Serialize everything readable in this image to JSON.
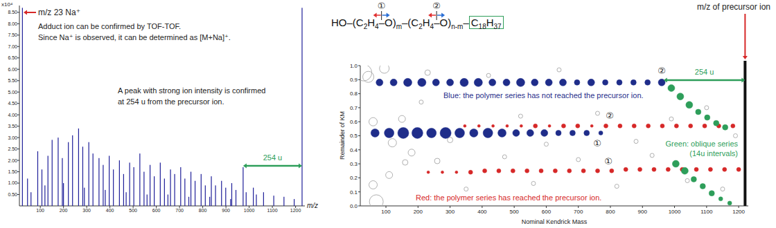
{
  "chart_data": [
    {
      "type": "bar",
      "x": [
        23,
        45,
        60,
        89,
        107,
        120,
        133,
        151,
        177,
        195,
        200,
        221,
        239,
        265,
        283,
        290,
        309,
        327,
        353,
        371,
        380,
        397,
        415,
        441,
        459,
        470,
        485,
        503,
        529,
        547,
        560,
        573,
        591,
        617,
        635,
        650,
        661,
        679,
        705,
        723,
        740,
        749,
        767,
        793,
        811,
        830,
        837,
        855,
        881,
        899,
        920,
        925,
        943,
        974,
        987,
        1018,
        1031,
        1062,
        1106,
        1150,
        1194,
        1228
      ],
      "values": [
        8.7,
        1.2,
        0.6,
        2.4,
        1.6,
        0.9,
        2.2,
        2.9,
        3.0,
        2.1,
        1.0,
        2.8,
        3.1,
        3.4,
        2.6,
        0.8,
        2.8,
        2.3,
        2.1,
        1.8,
        0.7,
        2.2,
        1.6,
        2.0,
        1.4,
        0.6,
        1.9,
        1.7,
        2.3,
        1.5,
        0.5,
        1.8,
        1.3,
        1.9,
        1.2,
        0.5,
        1.6,
        1.4,
        1.7,
        1.2,
        0.4,
        1.5,
        1.1,
        1.4,
        0.9,
        0.4,
        1.3,
        0.9,
        1.1,
        0.8,
        0.3,
        1.0,
        0.7,
        1.7,
        0.6,
        0.8,
        0.5,
        0.6,
        0.45,
        0.4,
        0.3,
        8.7
      ],
      "color": "#1f1f99",
      "xlim": [
        10,
        1240
      ],
      "ylim": [
        0,
        8.8
      ],
      "xticks": [
        100,
        200,
        300,
        400,
        500,
        600,
        700,
        800,
        900,
        1000,
        1100,
        1200
      ],
      "yticks": [
        {
          "value": 0.5,
          "label": "0.50"
        },
        {
          "value": 1,
          "label": "1.00"
        },
        {
          "value": 1.5,
          "label": "1.50"
        },
        {
          "value": 2,
          "label": "2.00"
        },
        {
          "value": 2.5,
          "label": "2.50"
        },
        {
          "value": 3,
          "label": "3.00"
        },
        {
          "value": 3.5,
          "label": "3.50"
        },
        {
          "value": 4,
          "label": "4.00"
        },
        {
          "value": 4.5,
          "label": "4.50"
        },
        {
          "value": 5,
          "label": "5.00"
        },
        {
          "value": 5.5,
          "label": "5.50"
        },
        {
          "value": 6,
          "label": "6.00"
        },
        {
          "value": 6.5,
          "label": "6.50"
        },
        {
          "value": 7,
          "label": "7.00"
        },
        {
          "value": 7.5,
          "label": "7.50"
        },
        {
          "value": 8,
          "label": "8.00"
        },
        {
          "value": 8.5,
          "label": "8.50"
        }
      ],
      "xlabel": "m/z",
      "ylabel": "x10⁴",
      "annotations": [
        {
          "text": "m/z 23 Na⁺",
          "color": "#222222"
        },
        {
          "text": "Adduct ion can be confirmed by TOF-TOF.",
          "color": "#222222"
        },
        {
          "text": "Since Na⁺ is observed, it can be determined as [M+Na]⁺.",
          "color": "#222222"
        },
        {
          "text": "A peak with strong ion intensity is confirmed",
          "color": "#222222"
        },
        {
          "text": "at 254 u from the precursor ion.",
          "color": "#222222"
        },
        {
          "text": "254 u",
          "color": "#2e9e5a",
          "x": [
            974,
            1228
          ]
        }
      ]
    },
    {
      "type": "bubble",
      "formula": [
        "HO–(C",
        "2",
        "H",
        "4",
        "–O)",
        "m",
        "–(C",
        "2",
        "H",
        "4",
        "–O)",
        "n-m",
        "–"
      ],
      "end_group": [
        "C",
        "18",
        "H",
        "37"
      ],
      "formula_marks": [
        "①",
        "②"
      ],
      "series": [
        {
          "color": "#b0b0b0",
          "marker": "open-circle",
          "x": [
            30,
            45,
            60,
            70,
            95,
            120,
            150,
            180,
            230,
            260,
            300,
            350,
            420,
            470,
            520,
            560,
            600,
            640,
            700,
            760,
            820,
            880,
            930,
            990,
            1040,
            1100,
            1150,
            1190,
            60,
            110,
            160,
            210
          ],
          "values": [
            0.95,
            0.92,
            0.6,
            0.03,
            0.98,
            0.45,
            0.62,
            0.38,
            0.95,
            0.32,
            0.47,
            0.12,
            0.93,
            0.35,
            0.64,
            0.16,
            0.44,
            0.97,
            0.33,
            0.66,
            0.14,
            0.46,
            0.36,
            0.62,
            0.18,
            0.7,
            0.12,
            0.5,
            0.15,
            0.22,
            0.31,
            0.74
          ],
          "sizes": [
            12,
            8,
            6,
            10,
            7,
            6,
            5,
            5,
            4,
            4,
            4,
            3,
            3,
            3,
            3,
            3,
            3,
            3,
            3,
            3,
            3,
            3,
            3,
            3,
            3,
            3,
            3,
            3,
            6,
            5,
            4,
            3
          ]
        },
        {
          "color": "#1f2d8a",
          "marker": "circle",
          "x": [
            80,
            124,
            168,
            212,
            256,
            300,
            344,
            388,
            432,
            476,
            520,
            564,
            608,
            652,
            696,
            740,
            784,
            828,
            872,
            916,
            960
          ],
          "values": [
            0.88,
            0.88,
            0.88,
            0.88,
            0.88,
            0.88,
            0.88,
            0.88,
            0.88,
            0.88,
            0.88,
            0.88,
            0.88,
            0.88,
            0.88,
            0.88,
            0.88,
            0.88,
            0.88,
            0.88,
            0.88
          ],
          "sizes": [
            5,
            5,
            6,
            6,
            5,
            5,
            6,
            6,
            5,
            5,
            6,
            5,
            5,
            5,
            4,
            5,
            4,
            4,
            4,
            4,
            5
          ]
        },
        {
          "color": "#1f2d8a",
          "marker": "circle",
          "x": [
            66,
            110,
            154,
            198,
            242,
            286,
            330,
            374,
            418,
            462,
            506,
            550,
            594,
            638,
            682,
            726,
            770
          ],
          "values": [
            0.52,
            0.52,
            0.52,
            0.52,
            0.52,
            0.52,
            0.52,
            0.52,
            0.52,
            0.52,
            0.52,
            0.52,
            0.52,
            0.52,
            0.52,
            0.52,
            0.52
          ],
          "sizes": [
            6,
            7,
            8,
            8,
            7,
            8,
            7,
            6,
            7,
            6,
            5,
            5,
            5,
            4,
            4,
            4,
            3
          ]
        },
        {
          "color": "#d62828",
          "marker": "circle",
          "x": [
            346,
            390,
            434,
            478,
            522,
            566,
            610,
            654,
            698,
            742,
            786,
            830,
            874,
            918,
            962,
            1006,
            1050,
            1094,
            1138,
            1182
          ],
          "values": [
            0.57,
            0.57,
            0.57,
            0.57,
            0.57,
            0.57,
            0.57,
            0.57,
            0.57,
            0.57,
            0.57,
            0.57,
            0.57,
            0.57,
            0.57,
            0.57,
            0.57,
            0.57,
            0.57,
            0.57
          ],
          "sizes": [
            2,
            2,
            2,
            2,
            2,
            3,
            2,
            3,
            3,
            2,
            3,
            3,
            3,
            3,
            3,
            3,
            3,
            3,
            3,
            3
          ]
        },
        {
          "color": "#d62828",
          "marker": "circle",
          "x": [
            232,
            276,
            320,
            364,
            408,
            452,
            496,
            540,
            584,
            628,
            672,
            716,
            760,
            804,
            848,
            892,
            936,
            980,
            1024,
            1068,
            1112,
            1156,
            1200
          ],
          "values": [
            0.24,
            0.24,
            0.24,
            0.24,
            0.25,
            0.25,
            0.25,
            0.25,
            0.25,
            0.25,
            0.25,
            0.25,
            0.25,
            0.25,
            0.26,
            0.26,
            0.26,
            0.26,
            0.26,
            0.26,
            0.26,
            0.26,
            0.26
          ],
          "sizes": [
            2,
            2,
            2,
            3,
            3,
            3,
            3,
            3,
            3,
            3,
            3,
            3,
            3,
            3,
            3,
            3,
            3,
            3,
            3,
            3,
            3,
            3,
            3
          ]
        },
        {
          "color": "#2e9e5a",
          "marker": "circle",
          "x": [
            990,
            1018,
            1046,
            1074,
            1102,
            1130,
            1158
          ],
          "values": [
            0.84,
            0.78,
            0.72,
            0.67,
            0.63,
            0.59,
            0.56
          ],
          "sizes": [
            5,
            5,
            5,
            4,
            4,
            4,
            4
          ]
        },
        {
          "color": "#2e9e5a",
          "marker": "circle",
          "x": [
            1004,
            1032,
            1060,
            1088,
            1116,
            1144,
            1172
          ],
          "values": [
            0.3,
            0.25,
            0.19,
            0.14,
            0.09,
            0.05,
            0.02
          ],
          "sizes": [
            5,
            5,
            4,
            4,
            4,
            3,
            3
          ]
        }
      ],
      "xlim": [
        20,
        1230
      ],
      "ylim": [
        0,
        1
      ],
      "xticks": [
        100,
        200,
        300,
        400,
        500,
        600,
        700,
        800,
        900,
        1000,
        1100,
        1200
      ],
      "yticks": [
        {
          "value": 0,
          "label": "0.0"
        },
        0.1,
        0.2,
        0.3,
        0.4,
        0.5,
        0.6,
        0.7,
        0.8,
        0.9,
        {
          "value": 1,
          "label": "1.0"
        }
      ],
      "xlabel": "Nominal Kendrick Mass",
      "ylabel": "Remainder of KM",
      "vlines": [
        {
          "x": 1220,
          "label": "m/z of precursor ion"
        }
      ],
      "annotations": [
        {
          "text": "Blue: the polymer series has not reached the precursor ion.",
          "color": "#1f2d8a"
        },
        {
          "text": "Red: the polymer series has reached the precursor ion.",
          "color": "#d62828"
        },
        {
          "text": "Green: oblique series",
          "color": "#2e9e5a"
        },
        {
          "text": "(14u intervals)",
          "color": "#2e9e5a"
        },
        {
          "text": "254 u",
          "color": "#2e9e5a",
          "x": [
            966,
            1220
          ]
        },
        {
          "text": "②",
          "color": "#222222"
        },
        {
          "text": "②",
          "color": "#222222"
        },
        {
          "text": "①",
          "color": "#222222"
        },
        {
          "text": "①",
          "color": "#222222"
        }
      ]
    }
  ]
}
